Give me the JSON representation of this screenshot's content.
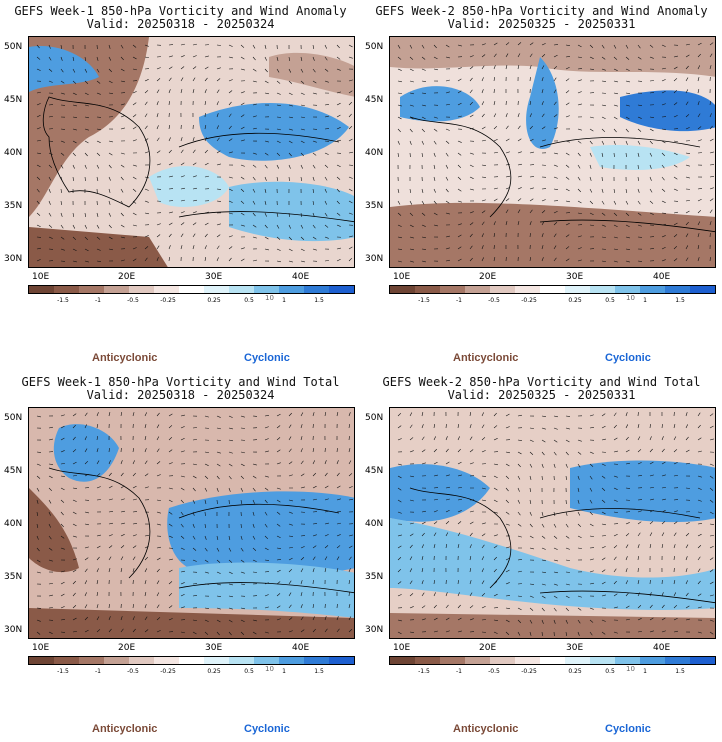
{
  "panels": [
    {
      "title": "GEFS Week-1 850-hPa Vorticity and Wind Anomaly",
      "valid": "Valid: 20250318 - 20250324"
    },
    {
      "title": "GEFS Week-2 850-hPa Vorticity and Wind Anomaly",
      "valid": "Valid: 20250325 - 20250331"
    },
    {
      "title": "GEFS Week-1 850-hPa Vorticity and Wind Total",
      "valid": "Valid: 20250318 - 20250324"
    },
    {
      "title": "GEFS Week-2 850-hPa Vorticity and Wind Total",
      "valid": "Valid: 20250325 - 20250331"
    }
  ],
  "lat_labels": [
    "50N",
    "45N",
    "40N",
    "35N",
    "30N"
  ],
  "lon_labels": [
    "10E",
    "20E",
    "30E",
    "40E"
  ],
  "colorbar": {
    "colors": [
      "#6e4434",
      "#8a5a48",
      "#a57766",
      "#c4a194",
      "#e1c9c1",
      "#f4e6e2",
      "#ffffff",
      "#dff3fa",
      "#b8e3f3",
      "#7fc3ea",
      "#4e9de0",
      "#2f7bd6",
      "#1d5fd0"
    ],
    "ticks": [
      "-1.5",
      "-1",
      "-0.5",
      "-0.25",
      "0.25",
      "0.5",
      "1",
      "1.5"
    ],
    "mini": "10"
  },
  "legend": {
    "anticyclonic": "Anticyclonic",
    "cyclonic": "Cyclonic"
  }
}
